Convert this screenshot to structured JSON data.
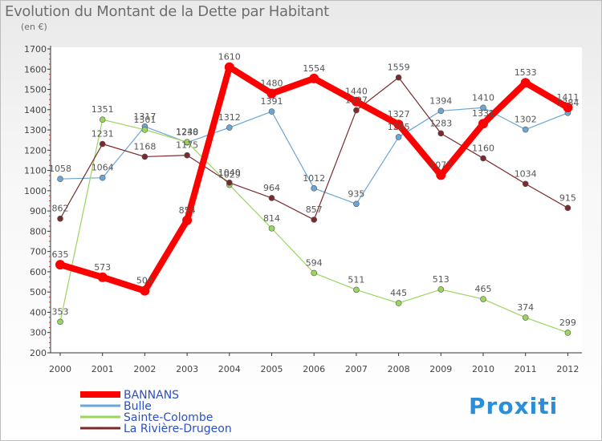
{
  "chart_data": {
    "type": "line",
    "title": "Evolution du Montant de la Dette par Habitant",
    "subtitle": "(en €)",
    "x": [
      "2000",
      "2001",
      "2002",
      "2003",
      "2004",
      "2005",
      "2006",
      "2007",
      "2008",
      "2009",
      "2010",
      "2011",
      "2012"
    ],
    "ylim": [
      200,
      1700
    ],
    "yticks": [
      200,
      300,
      400,
      500,
      600,
      700,
      800,
      900,
      1000,
      1100,
      1200,
      1300,
      1400,
      1500,
      1600,
      1700
    ],
    "grid": false,
    "legend_position": "bottom-left",
    "series": [
      {
        "name": "BANNANS",
        "color": "#ff0000",
        "values": [
          635,
          573,
          506,
          854,
          1610,
          1480,
          1554,
          1440,
          1327,
          1077,
          1331,
          1533,
          1411
        ]
      },
      {
        "name": "Bulle",
        "color": "#6aa6d6",
        "values": [
          1058,
          1064,
          1317,
          1238,
          1312,
          1391,
          1012,
          935,
          1265,
          1394,
          1410,
          1302,
          1384
        ]
      },
      {
        "name": "Sainte-Colombe",
        "color": "#9ad65e",
        "values": [
          353,
          1351,
          1301,
          1240,
          1029,
          814,
          594,
          511,
          445,
          513,
          465,
          374,
          299
        ]
      },
      {
        "name": "La Rivière-Drugeon",
        "color": "#7a2a2a",
        "values": [
          862,
          1231,
          1168,
          1175,
          1040,
          964,
          857,
          1397,
          1559,
          1283,
          1160,
          1034,
          915
        ]
      }
    ]
  },
  "logo": {
    "text": "Proxiti"
  }
}
